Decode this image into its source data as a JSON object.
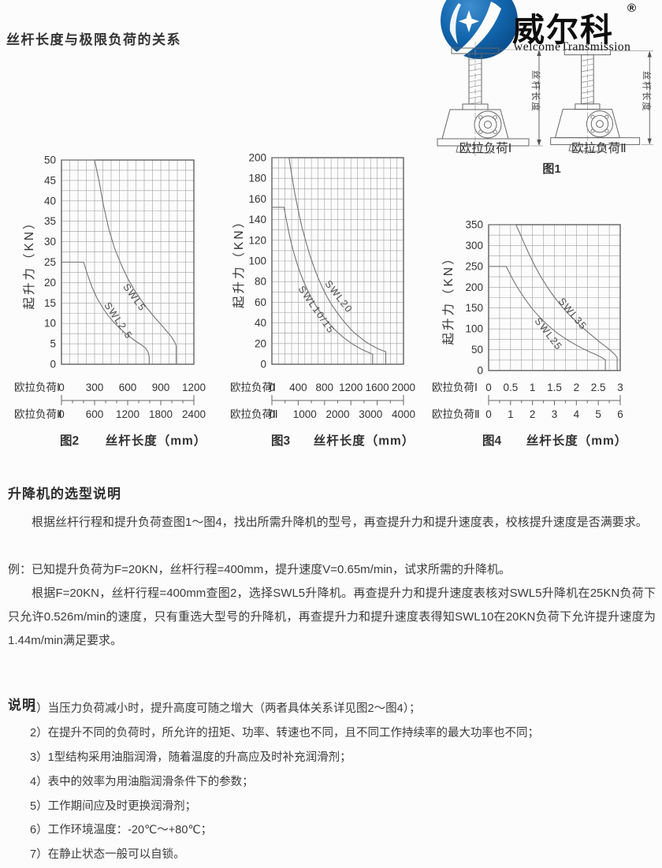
{
  "page": {
    "title": "丝杆长度与极限负荷的关系"
  },
  "logo": {
    "brand": "威尔科",
    "registered": "®",
    "subtitle": "welcomeTransmission",
    "emblem_icon": "star-swoosh-globe-icon",
    "blue": "#0e5a9e"
  },
  "figure1": {
    "caption": "图1",
    "labels": [
      "欧拉负荷Ⅰ",
      "欧拉负荷Ⅱ"
    ],
    "dim_label": "丝杆长度"
  },
  "chart_data": [
    {
      "type": "line",
      "caption": "图2",
      "xlabel": "丝杆长度（mm）",
      "ylabel": "起升力（KN）",
      "ylim": [
        0,
        50
      ],
      "yticks": [
        0,
        5,
        10,
        15,
        20,
        25,
        30,
        35,
        40,
        45,
        50
      ],
      "grid": {
        "cols": 16,
        "rows": 20,
        "on": true
      },
      "axis1": {
        "label": "欧拉负荷Ⅰ",
        "max": 1200,
        "ticks": [
          "0",
          "300",
          "600",
          "900",
          "1200"
        ],
        "minor_step": 100
      },
      "axis2": {
        "label": "欧拉负荷Ⅱ",
        "max": 2400,
        "ticks": [
          "0",
          "600",
          "1200",
          "1800",
          "2400"
        ]
      },
      "series": [
        {
          "name": "SWL5",
          "points": [
            [
              0,
              50
            ],
            [
              300,
              50
            ],
            [
              340,
              45
            ],
            [
              380,
              39
            ],
            [
              430,
              33
            ],
            [
              480,
              28.5
            ],
            [
              540,
              24.5
            ],
            [
              600,
              21
            ],
            [
              660,
              18.2
            ],
            [
              720,
              15.8
            ],
            [
              780,
              13.6
            ],
            [
              840,
              11.6
            ],
            [
              900,
              9.8
            ],
            [
              950,
              8.2
            ],
            [
              1000,
              6.6
            ],
            [
              1030,
              5.2
            ],
            [
              1040,
              4.5
            ],
            [
              1040,
              0
            ]
          ]
        },
        {
          "name": "SWL2.5",
          "points": [
            [
              0,
              25
            ],
            [
              200,
              25
            ],
            [
              235,
              22
            ],
            [
              275,
              19
            ],
            [
              320,
              16.3
            ],
            [
              370,
              14
            ],
            [
              420,
              12
            ],
            [
              470,
              10.4
            ],
            [
              520,
              9
            ],
            [
              570,
              7.8
            ],
            [
              620,
              6.7
            ],
            [
              670,
              5.7
            ],
            [
              720,
              4.8
            ],
            [
              760,
              4
            ],
            [
              785,
              3
            ],
            [
              795,
              1.8
            ],
            [
              795,
              0
            ]
          ]
        }
      ]
    },
    {
      "type": "line",
      "caption": "图3",
      "xlabel": "丝杆长度（mm）",
      "ylabel": "起升力（KN）",
      "ylim": [
        0,
        200
      ],
      "yticks": [
        0,
        20,
        40,
        60,
        80,
        100,
        120,
        140,
        160,
        180,
        200
      ],
      "grid": {
        "cols": 20,
        "rows": 20,
        "on": true
      },
      "axis1": {
        "label": "欧拉负荷Ⅰ",
        "max": 2000,
        "ticks": [
          "0",
          "400",
          "800",
          "1200",
          "1600",
          "2000"
        ],
        "minor_step": 200
      },
      "axis2": {
        "label": "欧拉负荷Ⅱ",
        "max": 4000,
        "ticks": [
          "0",
          "1000",
          "2000",
          "3000",
          "4000"
        ]
      },
      "series": [
        {
          "name": "SWL20",
          "points": [
            [
              0,
              200
            ],
            [
              260,
              200
            ],
            [
              300,
              184
            ],
            [
              350,
              165
            ],
            [
              400,
              149
            ],
            [
              460,
              132
            ],
            [
              520,
              118
            ],
            [
              580,
              105
            ],
            [
              640,
              94
            ],
            [
              700,
              84
            ],
            [
              770,
              74
            ],
            [
              840,
              65
            ],
            [
              910,
              57.5
            ],
            [
              980,
              51
            ],
            [
              1050,
              45
            ],
            [
              1120,
              39.5
            ],
            [
              1190,
              34.5
            ],
            [
              1260,
              30
            ],
            [
              1330,
              26.5
            ],
            [
              1400,
              23
            ],
            [
              1470,
              20
            ],
            [
              1540,
              17.5
            ],
            [
              1610,
              15
            ],
            [
              1680,
              13.3
            ],
            [
              1730,
              12.2
            ],
            [
              1730,
              0
            ]
          ]
        },
        {
          "name": "SWL10/15",
          "points": [
            [
              0,
              152
            ],
            [
              185,
              152
            ],
            [
              225,
              138
            ],
            [
              270,
              124
            ],
            [
              320,
              111
            ],
            [
              375,
              99
            ],
            [
              430,
              88.5
            ],
            [
              490,
              79
            ],
            [
              550,
              70.5
            ],
            [
              610,
              63
            ],
            [
              670,
              56.5
            ],
            [
              740,
              50
            ],
            [
              810,
              44
            ],
            [
              880,
              38.6
            ],
            [
              950,
              33.8
            ],
            [
              1020,
              29.6
            ],
            [
              1090,
              25.8
            ],
            [
              1160,
              22.4
            ],
            [
              1230,
              19.4
            ],
            [
              1300,
              16.7
            ],
            [
              1370,
              14.3
            ],
            [
              1440,
              12.2
            ],
            [
              1500,
              10.5
            ],
            [
              1530,
              9.8
            ],
            [
              1530,
              0
            ]
          ]
        }
      ]
    },
    {
      "type": "line",
      "caption": "图4",
      "xlabel": "丝杆长度（mm）",
      "ylabel": "起升力（KN）",
      "ylim": [
        0,
        350
      ],
      "yticks": [
        0,
        50,
        100,
        150,
        200,
        250,
        300,
        350
      ],
      "grid": {
        "cols": 12,
        "rows": 14,
        "on": true
      },
      "axis1": {
        "label": "欧拉负荷Ⅰ",
        "max": 3,
        "ticks": [
          "0",
          "0.5",
          "1",
          "1.5",
          "2",
          "2.5",
          "3"
        ],
        "minor_step": 0.25
      },
      "axis2": {
        "label": "欧拉负荷Ⅱ",
        "max": 6,
        "ticks": [
          "0",
          "1",
          "2",
          "3",
          "4",
          "5",
          "6"
        ]
      },
      "series": [
        {
          "name": "SWL35",
          "points": [
            [
              0,
              350
            ],
            [
              0.62,
              350
            ],
            [
              0.7,
              332
            ],
            [
              0.8,
              308
            ],
            [
              0.92,
              280
            ],
            [
              1.05,
              252
            ],
            [
              1.2,
              223
            ],
            [
              1.35,
              198
            ],
            [
              1.5,
              176
            ],
            [
              1.65,
              156
            ],
            [
              1.8,
              138
            ],
            [
              1.95,
              122
            ],
            [
              2.1,
              107
            ],
            [
              2.25,
              93
            ],
            [
              2.4,
              80
            ],
            [
              2.55,
              67
            ],
            [
              2.7,
              55
            ],
            [
              2.8,
              46
            ],
            [
              2.88,
              38
            ],
            [
              2.93,
              31
            ],
            [
              2.93,
              0
            ]
          ]
        },
        {
          "name": "SWL25",
          "points": [
            [
              0,
              250
            ],
            [
              0.4,
              250
            ],
            [
              0.48,
              233
            ],
            [
              0.58,
              213
            ],
            [
              0.7,
              192
            ],
            [
              0.84,
              170
            ],
            [
              0.98,
              150
            ],
            [
              1.12,
              133
            ],
            [
              1.26,
              118
            ],
            [
              1.4,
              104
            ],
            [
              1.55,
              91
            ],
            [
              1.7,
              80
            ],
            [
              1.85,
              70
            ],
            [
              2.0,
              61
            ],
            [
              2.15,
              52.5
            ],
            [
              2.3,
              45
            ],
            [
              2.45,
              38
            ],
            [
              2.58,
              31
            ],
            [
              2.66,
              26
            ],
            [
              2.66,
              0
            ]
          ]
        }
      ]
    }
  ],
  "selection_guide": {
    "heading": "升降机的选型说明",
    "p1": "根据丝杆行程和提升负荷查图1～图4，找出所需升降机的型号，再查提升力和提升速度表，校核提升速度是否满要求。",
    "example": "例：已知提升负荷为F=20KN，丝杆行程=400mm，提升速度V=0.65m/min，试求所需的升降机。",
    "p2": "根据F=20KN，丝杆行程=400mm查图2，选择SWL5升降机。再查提升力和提升速度表核对SWL5升降机在25KN负荷下只允许0.526m/min的速度，只有重选大型号的升降机，再查提升力和提升速度表得知SWL10在20KN负荷下允许提升速度为1.44m/min满足要求。"
  },
  "notes": {
    "heading": "说明",
    "items": [
      "1）当压力负荷减小时，提升高度可随之增大（两者具体关系详见图2～图4）；",
      "2）在提升不同的负荷时，所允许的扭矩、功率、转速也不同，且不同工作持续率的最大功率也不同；",
      "3）1型结构采用油脂润滑，随着温度的升高应及时补充润滑剂；",
      "4）表中的效率为用油脂润滑条件下的参数；",
      "5）工作期间应及时更换润滑剂；",
      "6）工作环境温度：-20℃～+80℃；",
      "7）在静止状态一般可以自锁。"
    ]
  }
}
